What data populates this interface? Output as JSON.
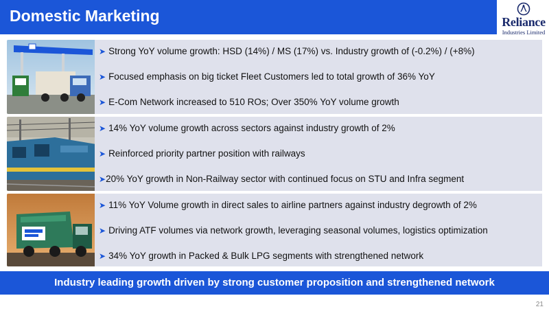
{
  "header": {
    "title": "Domestic Marketing"
  },
  "logo": {
    "name": "Reliance",
    "subtitle": "Industries Limited"
  },
  "sections": [
    {
      "image": "fuel-station-photo",
      "bullets": [
        "Strong YoY volume growth: HSD (14%) / MS (17%) vs. Industry growth of (-0.2%) / (+8%)",
        "Focused emphasis on big ticket Fleet Customers led to total growth of 36% YoY",
        "E-Com Network increased to 510 ROs; Over 350% YoY volume growth"
      ]
    },
    {
      "image": "railway-train-photo",
      "bullets": [
        "14% YoY volume growth across sectors against industry growth of 2%",
        "Reinforced priority partner position with railways",
        "20% YoY growth in Non-Railway sector with continued focus on STU and Infra segment"
      ]
    },
    {
      "image": "aviation-fuel-truck-photo",
      "bullets": [
        "11% YoY Volume growth in direct sales to airline partners against industry degrowth of 2%",
        "Driving ATF volumes via network growth, leveraging seasonal volumes, logistics optimization",
        "34% YoY growth in Packed & Bulk LPG segments with strengthened network"
      ]
    }
  ],
  "footer_banner": "Industry leading growth driven by strong customer proposition and strengthened network",
  "page_number": "21",
  "colors": {
    "accent": "#1b56d8",
    "panel": "#dfe1ec",
    "logo_text": "#1a2a6c"
  }
}
